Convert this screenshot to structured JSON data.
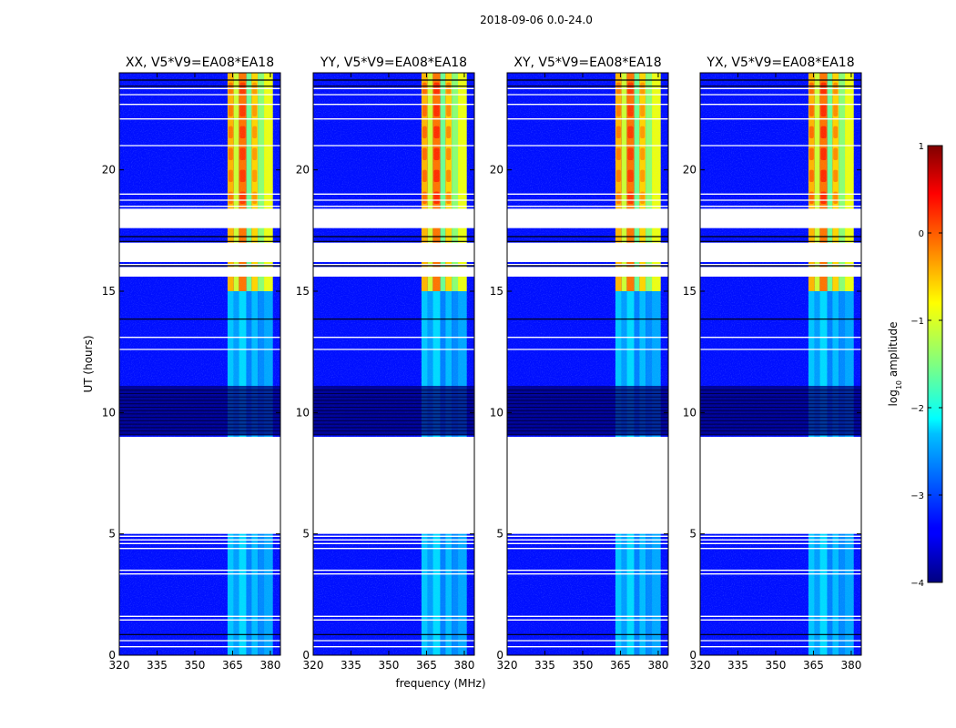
{
  "figure": {
    "suptitle": "2018-09-06 0.0-24.0",
    "xlabel": "frequency (MHz)",
    "ylabel": "UT (hours)"
  },
  "chart_data": {
    "type": "heatmap",
    "panels": [
      {
        "title": "XX, V5*V9=EA08*EA18"
      },
      {
        "title": "YY, V5*V9=EA08*EA18"
      },
      {
        "title": "XY, V5*V9=EA08*EA18"
      },
      {
        "title": "YX, V5*V9=EA08*EA18"
      }
    ],
    "x_range": [
      320,
      384
    ],
    "x_ticks": [
      320,
      335,
      350,
      365,
      380
    ],
    "y_range": [
      0,
      24
    ],
    "y_ticks": [
      0,
      5,
      10,
      15,
      20
    ],
    "colorscale": "jet",
    "colorbar": {
      "label_prefix": "log",
      "label_sub": "10",
      "label_suffix": " amplitude",
      "range": [
        -4,
        1
      ],
      "ticks": [
        1,
        0,
        -1,
        -2,
        -3,
        -4
      ],
      "tick_labels": [
        "1",
        "0",
        "−1",
        "−2",
        "−3",
        "−4"
      ]
    },
    "flagged_hours": [
      [
        5.0,
        9.0
      ],
      [
        15.6,
        16.0
      ],
      [
        16.2,
        17.0
      ],
      [
        17.6,
        18.4
      ]
    ],
    "rfi_band_mhz": [
      363,
      381
    ],
    "background_log_amplitude": -3.3,
    "band_log_amplitude_early": -2.3,
    "band_log_amplitude_late": -0.2
  }
}
